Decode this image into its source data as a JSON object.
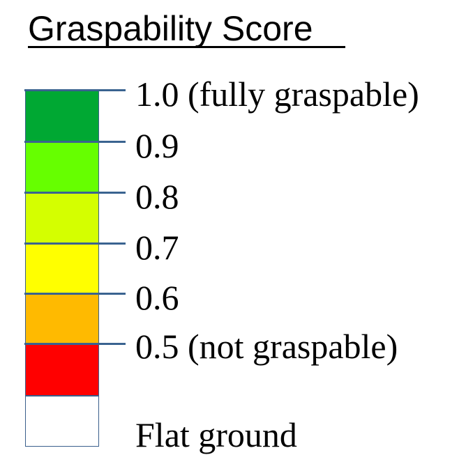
{
  "title": "Graspability Score",
  "legend": [
    {
      "color": "#00a833",
      "label": "1.0 (fully graspable)"
    },
    {
      "color": "#66ff00",
      "label": "0.9"
    },
    {
      "color": "#d4ff00",
      "label": "0.8"
    },
    {
      "color": "#ffff00",
      "label": "0.7"
    },
    {
      "color": "#ffba00",
      "label": "0.6"
    },
    {
      "color": "#ff0000",
      "label": "0.5 (not graspable)"
    },
    {
      "color": "#ffffff",
      "label": "Flat ground"
    }
  ]
}
